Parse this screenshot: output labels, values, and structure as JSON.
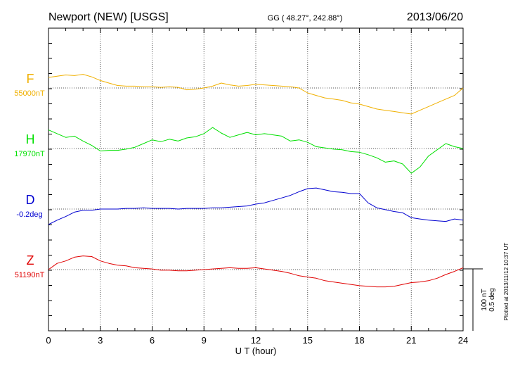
{
  "header": {
    "station": "Newport (NEW)  [USGS]",
    "coords": "GG ( 48.27°, 242.88°)",
    "date": "2013/06/20"
  },
  "footer": {
    "plotted": "Plotted at 2013/11/12 10:37 UT"
  },
  "colors": {
    "F": "#f0b000",
    "H": "#00e000",
    "D": "#0000d0",
    "Z": "#e00000"
  },
  "chart_data": {
    "type": "line",
    "title": "",
    "xlabel": "U T (hour)",
    "ylabel": "",
    "xlim": [
      0,
      24
    ],
    "x_ticks": [
      "0",
      "3",
      "6",
      "9",
      "12",
      "15",
      "18",
      "21",
      "24"
    ],
    "scale_bar": {
      "line1": "100 nT",
      "line2": "0.5 deg"
    },
    "x": [
      0,
      0.5,
      1,
      1.5,
      2,
      2.5,
      3,
      3.5,
      4,
      4.5,
      5,
      5.5,
      6,
      6.5,
      7,
      7.5,
      8,
      8.5,
      9,
      9.5,
      10,
      10.5,
      11,
      11.5,
      12,
      12.5,
      13,
      13.5,
      14,
      14.5,
      15,
      15.5,
      16,
      16.5,
      17,
      17.5,
      18,
      18.5,
      19,
      19.5,
      20,
      20.5,
      21,
      21.5,
      22,
      22.5,
      23,
      23.5,
      24
    ],
    "series": [
      {
        "name": "F",
        "baseline_label": "55000nT",
        "color": "#f0b000",
        "values": [
          17,
          19,
          21,
          20,
          22,
          18,
          12,
          8,
          4,
          3,
          3,
          2,
          2,
          1,
          2,
          1,
          -3,
          -2,
          0,
          3,
          8,
          5,
          3,
          4,
          6,
          5,
          4,
          3,
          2,
          0,
          -8,
          -12,
          -16,
          -18,
          -20,
          -24,
          -26,
          -30,
          -34,
          -36,
          -38,
          -40,
          -42,
          -36,
          -30,
          -24,
          -18,
          -12,
          0
        ]
      },
      {
        "name": "H",
        "baseline_label": "17970nT",
        "color": "#00e000",
        "values": [
          30,
          24,
          18,
          20,
          12,
          5,
          -4,
          -3,
          -3,
          -1,
          2,
          8,
          14,
          11,
          15,
          12,
          17,
          19,
          24,
          34,
          25,
          18,
          22,
          26,
          22,
          24,
          22,
          20,
          12,
          14,
          10,
          3,
          1,
          -1,
          -2,
          -5,
          -6,
          -10,
          -15,
          -22,
          -20,
          -25,
          -40,
          -30,
          -12,
          -2,
          8,
          3,
          0
        ]
      },
      {
        "name": "D",
        "baseline_label": "-0.2deg",
        "color": "#0000d0",
        "values": [
          -25,
          -18,
          -12,
          -5,
          -2,
          -2,
          0,
          0,
          0,
          1,
          1,
          2,
          1,
          1,
          1,
          0,
          1,
          1,
          1,
          2,
          2,
          3,
          4,
          5,
          8,
          10,
          14,
          18,
          22,
          28,
          33,
          34,
          31,
          28,
          27,
          25,
          25,
          10,
          2,
          -1,
          -4,
          -6,
          -14,
          -16,
          -18,
          -19,
          -20,
          -16,
          -18
        ]
      },
      {
        "name": "Z",
        "baseline_label": "51190nT",
        "color": "#e00000",
        "values": [
          0,
          10,
          14,
          20,
          22,
          21,
          14,
          10,
          7,
          6,
          3,
          2,
          1,
          -1,
          -1,
          -2,
          -2,
          -1,
          0,
          1,
          2,
          3,
          2,
          2,
          3,
          1,
          -1,
          -3,
          -6,
          -10,
          -12,
          -14,
          -18,
          -20,
          -22,
          -24,
          -26,
          -27,
          -28,
          -28,
          -27,
          -24,
          -21,
          -20,
          -18,
          -14,
          -8,
          -3,
          3
        ]
      }
    ]
  }
}
